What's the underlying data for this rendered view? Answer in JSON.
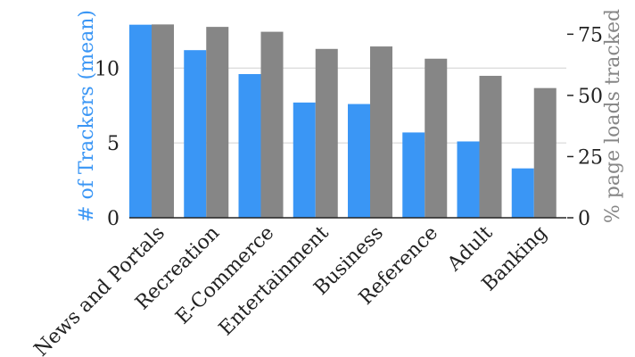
{
  "chart_data": {
    "type": "bar",
    "categories": [
      "News and Portals",
      "Recreation",
      "E-Commerce",
      "Entertainment",
      "Business",
      "Reference",
      "Adult",
      "Banking"
    ],
    "series": [
      {
        "axis": "left",
        "color": "#3a96f5",
        "values": [
          12.9,
          11.2,
          9.6,
          7.7,
          7.6,
          5.7,
          5.1,
          3.3
        ]
      },
      {
        "axis": "right",
        "color": "#868686",
        "values": [
          79,
          78,
          76,
          69,
          70,
          65,
          58,
          53
        ]
      }
    ],
    "ylabel": "# of Trackers (mean)",
    "ylabel_color": "#3a96f5",
    "y2label": "% page loads tracked",
    "y2label_color": "#868686",
    "ylim": [
      0,
      13
    ],
    "y2lim": [
      0,
      79.5
    ],
    "yticks": [
      "0",
      "5",
      "10"
    ],
    "y2ticks": [
      "0",
      "25",
      "50",
      "75"
    ],
    "grid": "horizontal"
  }
}
